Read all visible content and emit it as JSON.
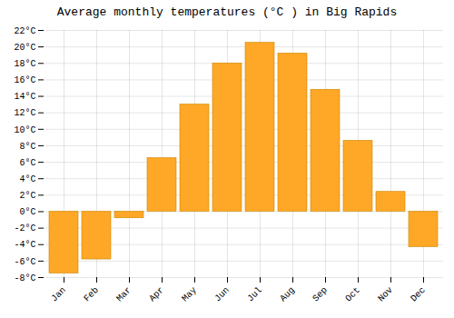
{
  "chart_data": {
    "type": "bar",
    "title": "Average monthly temperatures (°C ) in Big Rapids",
    "categories": [
      "Jan",
      "Feb",
      "Mar",
      "Apr",
      "May",
      "Jun",
      "Jul",
      "Aug",
      "Sep",
      "Oct",
      "Nov",
      "Dec"
    ],
    "values": [
      -7.5,
      -5.8,
      -0.8,
      6.5,
      13.0,
      18.0,
      20.5,
      19.2,
      14.8,
      8.6,
      2.4,
      -4.3
    ],
    "color": "#FFA726",
    "ylim": [
      -8,
      22
    ],
    "yticks": [
      {
        "value": -8,
        "label": "-8°C"
      },
      {
        "value": -6,
        "label": "-6°C"
      },
      {
        "value": -4,
        "label": "-4°C"
      },
      {
        "value": -2,
        "label": "-2°C"
      },
      {
        "value": 0,
        "label": "0°C"
      },
      {
        "value": 2,
        "label": "2°C"
      },
      {
        "value": 4,
        "label": "4°C"
      },
      {
        "value": 6,
        "label": "6°C"
      },
      {
        "value": 8,
        "label": "8°C"
      },
      {
        "value": 10,
        "label": "10°C"
      },
      {
        "value": 12,
        "label": "12°C"
      },
      {
        "value": 14,
        "label": "14°C"
      },
      {
        "value": 16,
        "label": "16°C"
      },
      {
        "value": 18,
        "label": "18°C"
      },
      {
        "value": 20,
        "label": "20°C"
      },
      {
        "value": 22,
        "label": "22°C"
      }
    ],
    "grid": true
  }
}
